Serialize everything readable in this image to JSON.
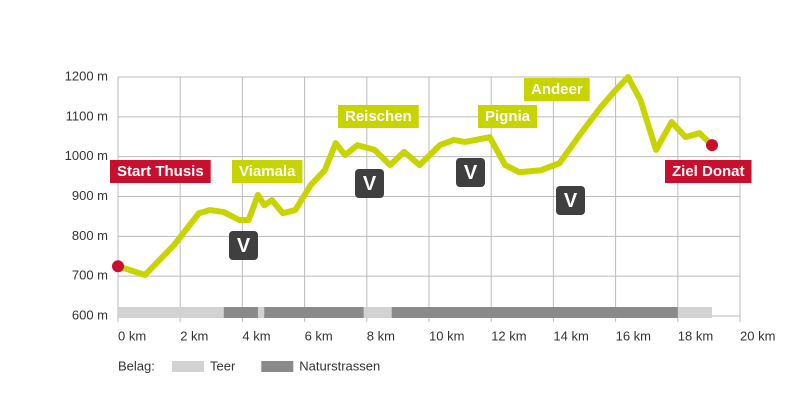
{
  "chart_data": {
    "type": "line",
    "x": [
      0,
      0.87,
      1.8,
      2.6,
      2.96,
      3.4,
      3.9,
      4.2,
      4.5,
      4.7,
      4.95,
      5.3,
      5.7,
      6.2,
      6.65,
      7.0,
      7.3,
      7.7,
      8.25,
      8.75,
      9.2,
      9.7,
      10.35,
      10.8,
      11.15,
      11.5,
      11.95,
      12.45,
      12.9,
      13.6,
      14.2,
      14.85,
      15.5,
      16.0,
      16.4,
      16.8,
      17.3,
      17.8,
      18.25,
      18.7,
      19.1
    ],
    "series": [
      {
        "color": "#c8d400",
        "values": [
          725,
          703,
          778,
          858,
          866,
          861,
          841,
          841,
          904,
          878,
          891,
          858,
          866,
          929,
          966,
          1034,
          1004,
          1029,
          1017,
          979,
          1012,
          979,
          1029,
          1042,
          1037,
          1042,
          1049,
          979,
          961,
          966,
          984,
          1055,
          1122,
          1167,
          1200,
          1142,
          1017,
          1087,
          1049,
          1059,
          1029
        ]
      }
    ],
    "xlim": [
      0,
      20
    ],
    "xticks": [
      {
        "value": 0,
        "label": "0 km"
      },
      {
        "value": 2,
        "label": "2 km"
      },
      {
        "value": 4,
        "label": "4 km"
      },
      {
        "value": 6,
        "label": "6 km"
      },
      {
        "value": 8,
        "label": "8 km"
      },
      {
        "value": 10,
        "label": "10 km"
      },
      {
        "value": 12,
        "label": "12 km"
      },
      {
        "value": 14,
        "label": "14 km"
      },
      {
        "value": 16,
        "label": "16 km"
      },
      {
        "value": 18,
        "label": "18 km"
      },
      {
        "value": 20,
        "label": "20 km"
      }
    ],
    "ylim": [
      600,
      1200
    ],
    "yticks": [
      {
        "value": 600,
        "label": "600 m"
      },
      {
        "value": 700,
        "label": "700 m"
      },
      {
        "value": 800,
        "label": "800 m"
      },
      {
        "value": 900,
        "label": "900 m"
      },
      {
        "value": 1000,
        "label": "1000 m"
      },
      {
        "value": 1100,
        "label": "1100 m"
      },
      {
        "value": 1200,
        "label": "1200 m"
      }
    ],
    "grid": true,
    "annotations": [
      "Start Thusis",
      "Viamala",
      "Reischen",
      "Pignia",
      "Andeer",
      "Ziel Donat"
    ],
    "markers": [
      "V",
      "V",
      "V",
      "V"
    ],
    "legend_title": "Belag:",
    "surface": [
      {
        "name": "Teer",
        "color": "#d2d2d2",
        "segments": [
          [
            0,
            3.4
          ],
          [
            4.5,
            4.7
          ],
          [
            7.9,
            8.8
          ],
          [
            18,
            19.1
          ]
        ]
      },
      {
        "name": "Naturstrassen",
        "color": "#8a8a8a",
        "segments": [
          [
            3.4,
            4.5
          ],
          [
            4.7,
            7.9
          ],
          [
            8.8,
            18
          ]
        ]
      }
    ]
  }
}
